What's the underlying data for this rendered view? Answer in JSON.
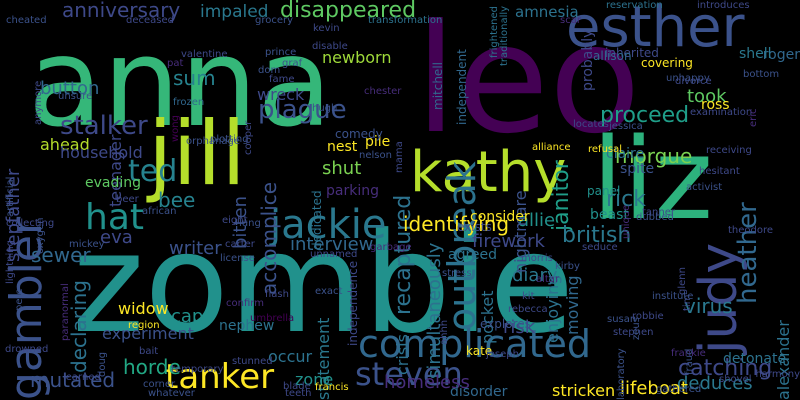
{
  "colors": {
    "background": "#000000",
    "palette": [
      "#440154",
      "#3b528b",
      "#21908d",
      "#5dc963",
      "#fde725"
    ]
  },
  "words": [
    {
      "t": "anna",
      "c": "#35b779"
    },
    {
      "t": "leo",
      "c": "#440154"
    },
    {
      "t": "zombie",
      "c": "#21918c"
    },
    {
      "t": "jill",
      "c": "#b5de2b"
    },
    {
      "t": "liz",
      "c": "#2db27d"
    },
    {
      "t": "esther",
      "c": "#3b528b"
    },
    {
      "t": "kathy",
      "c": "#b5de2b"
    },
    {
      "t": "gambler",
      "c": "#3b528b"
    },
    {
      "t": "tanker",
      "c": "#fde725"
    },
    {
      "t": "complicated",
      "c": "#31688e"
    },
    {
      "t": "judy",
      "c": "#3e4989"
    },
    {
      "t": "jackie",
      "c": "#2a788e"
    },
    {
      "t": "steven",
      "c": "#3b528b"
    },
    {
      "t": "hat",
      "c": "#21918c"
    },
    {
      "t": "ted",
      "c": "#26828e"
    },
    {
      "t": "stalker",
      "c": "#3e4989"
    },
    {
      "t": "outbreak",
      "c": "#2c728e"
    },
    {
      "t": "heather",
      "c": "#31688e"
    },
    {
      "t": "recaptured",
      "c": "#2c728e"
    },
    {
      "t": "janitor",
      "c": "#1f9e89"
    },
    {
      "t": "disappeared",
      "c": "#5ec962"
    },
    {
      "t": "anniversary",
      "c": "#3e4989"
    },
    {
      "t": "impaled",
      "c": "#2a788e"
    },
    {
      "t": "amnesia",
      "c": "#2c728e"
    },
    {
      "t": "mutated",
      "c": "#3b528b"
    },
    {
      "t": "catching",
      "c": "#3e4989"
    },
    {
      "t": "identifying",
      "c": "#fde725"
    },
    {
      "t": "horde",
      "c": "#22a884"
    },
    {
      "t": "rick",
      "c": "#2a788e"
    },
    {
      "t": "british",
      "c": "#2a788e"
    },
    {
      "t": "sewer",
      "c": "#31688e"
    },
    {
      "t": "declaring",
      "c": "#2c728e"
    },
    {
      "t": "stepfather",
      "c": "#3e4989"
    },
    {
      "t": "plague",
      "c": "#3b528b"
    },
    {
      "t": "accomplice",
      "c": "#3b528b"
    },
    {
      "t": "proceed",
      "c": "#1f9e89"
    },
    {
      "t": "morgue",
      "c": "#7ad151"
    },
    {
      "t": "alexander",
      "c": "#2c728e"
    },
    {
      "t": "eva",
      "c": "#3e4989"
    },
    {
      "t": "button",
      "c": "#31688e"
    },
    {
      "t": "sum",
      "c": "#26828e"
    },
    {
      "t": "newborn",
      "c": "#9fda3a"
    },
    {
      "t": "ahead",
      "c": "#b5de2b"
    },
    {
      "t": "household",
      "c": "#3e4989"
    },
    {
      "t": "bee",
      "c": "#26828e"
    },
    {
      "t": "writer",
      "c": "#3b528b"
    },
    {
      "t": "interview",
      "c": "#31688e"
    },
    {
      "t": "diary",
      "c": "#2a788e"
    },
    {
      "t": "deduces",
      "c": "#2a788e"
    },
    {
      "t": "virus",
      "c": "#2a788e"
    },
    {
      "t": "simultaneously",
      "c": "#2c728e"
    },
    {
      "t": "pocket",
      "c": "#2c728e"
    },
    {
      "t": "allie",
      "c": "#21918c"
    },
    {
      "t": "firework",
      "c": "#3e4989"
    },
    {
      "t": "bitten",
      "c": "#3b528b"
    },
    {
      "t": "shut",
      "c": "#7ad151"
    },
    {
      "t": "enjoying",
      "c": "#2c728e"
    },
    {
      "t": "moving",
      "c": "#31688e"
    },
    {
      "t": "risk",
      "c": "#3e4989"
    },
    {
      "t": "crisis",
      "c": "#2c728e"
    },
    {
      "t": "statement",
      "c": "#2a788e"
    },
    {
      "t": "homeless",
      "c": "#472d7b"
    },
    {
      "t": "zone",
      "c": "#21918c"
    },
    {
      "t": "cap",
      "c": "#21918c"
    },
    {
      "t": "widow",
      "c": "#fde725"
    },
    {
      "t": "experiment",
      "c": "#3b528b"
    },
    {
      "t": "teenager",
      "c": "#3e4989"
    },
    {
      "t": "wreck",
      "c": "#3e4989"
    },
    {
      "t": "took",
      "c": "#5ec962"
    },
    {
      "t": "nightmare",
      "c": "#3b528b"
    },
    {
      "t": "probably",
      "c": "#3e4989"
    },
    {
      "t": "roger",
      "c": "#31688e"
    },
    {
      "t": "shell",
      "c": "#2a788e"
    },
    {
      "t": "lifeboat",
      "c": "#fde725"
    },
    {
      "t": "stricken",
      "c": "#fde725"
    },
    {
      "t": "disorder",
      "c": "#31688e"
    },
    {
      "t": "detonate",
      "c": "#2c728e"
    },
    {
      "t": "occur",
      "c": "#2c728e"
    },
    {
      "t": "nephew",
      "c": "#2c728e"
    },
    {
      "t": "parking",
      "c": "#472d7b"
    },
    {
      "t": "evading",
      "c": "#5ec962"
    },
    {
      "t": "dedicated",
      "c": "#2c728e"
    },
    {
      "t": "pile",
      "c": "#fde725"
    },
    {
      "t": "comedy",
      "c": "#3b528b"
    },
    {
      "t": "nest",
      "c": "#fde725"
    },
    {
      "t": "ross",
      "c": "#fde725"
    },
    {
      "t": "spite",
      "c": "#3b528b"
    },
    {
      "t": "beast",
      "c": "#21918c"
    },
    {
      "t": "claire",
      "c": "#2c728e"
    },
    {
      "t": "panel",
      "c": "#21918c"
    },
    {
      "t": "consider",
      "c": "#fde725"
    },
    {
      "t": "agreed",
      "c": "#2c728e"
    },
    {
      "t": "exists",
      "c": "#3e4989"
    },
    {
      "t": "kate",
      "c": "#fde725"
    },
    {
      "t": "explores",
      "c": "#3b528b"
    },
    {
      "t": "independence",
      "c": "#3e4989"
    },
    {
      "t": "independent",
      "c": "#31688e"
    },
    {
      "t": "mitchell",
      "c": "#31688e"
    },
    {
      "t": "inherited",
      "c": "#3e4989"
    },
    {
      "t": "allison",
      "c": "#31688e"
    },
    {
      "t": "covering",
      "c": "#fde725"
    },
    {
      "t": "traditionally",
      "c": "#2c728e"
    },
    {
      "t": "frightened",
      "c": "#2c728e"
    },
    {
      "t": "reservation",
      "c": "#2c728e"
    },
    {
      "t": "introduces",
      "c": "#3e4989"
    },
    {
      "t": "scar",
      "c": "#472d7b"
    },
    {
      "t": "transformation",
      "c": "#2c728e"
    },
    {
      "t": "grocery",
      "c": "#3b528b"
    },
    {
      "t": "deceased",
      "c": "#3e4989"
    },
    {
      "t": "cheated",
      "c": "#3b528b"
    },
    {
      "t": "kevin",
      "c": "#3e4989"
    },
    {
      "t": "disable",
      "c": "#3e4989"
    },
    {
      "t": "prince",
      "c": "#3b528b"
    },
    {
      "t": "graf",
      "c": "#3b528b"
    },
    {
      "t": "dom",
      "c": "#3b528b"
    },
    {
      "t": "fame",
      "c": "#3e4989"
    },
    {
      "t": "chester",
      "c": "#472d7b"
    },
    {
      "t": "hugh",
      "c": "#3b528b"
    },
    {
      "t": "valentine",
      "c": "#3e4989"
    },
    {
      "t": "pat",
      "c": "#472d7b"
    },
    {
      "t": "unsure",
      "c": "#3b528b"
    },
    {
      "t": "frozen",
      "c": "#31688e"
    },
    {
      "t": "wong",
      "c": "#440154"
    },
    {
      "t": "orphanage",
      "c": "#3b528b"
    },
    {
      "t": "plotting",
      "c": "#3b528b"
    },
    {
      "t": "cooper",
      "c": "#3e4989"
    },
    {
      "t": "nelson",
      "c": "#3b528b"
    },
    {
      "t": "mama",
      "c": "#3e4989"
    },
    {
      "t": "eight",
      "c": "#3e4989"
    },
    {
      "t": "lung",
      "c": "#3b528b"
    },
    {
      "t": "carter",
      "c": "#3e4989"
    },
    {
      "t": "license",
      "c": "#3b528b"
    },
    {
      "t": "garbage",
      "c": "#472d7b"
    },
    {
      "t": "unnamed",
      "c": "#3e4989"
    },
    {
      "t": "exact",
      "c": "#3b528b"
    },
    {
      "t": "umbrella",
      "c": "#440154"
    },
    {
      "t": "confirm",
      "c": "#472d7b"
    },
    {
      "t": "flash",
      "c": "#3e4989"
    },
    {
      "t": "region",
      "c": "#fde725"
    },
    {
      "t": "bait",
      "c": "#3e4989"
    },
    {
      "t": "doug",
      "c": "#3b528b"
    },
    {
      "t": "temporary",
      "c": "#3e4989"
    },
    {
      "t": "corner",
      "c": "#3b528b"
    },
    {
      "t": "whatever",
      "c": "#3b528b"
    },
    {
      "t": "learned",
      "c": "#3e4989"
    },
    {
      "t": "stunned",
      "c": "#3e4989"
    },
    {
      "t": "blade",
      "c": "#3e4989"
    },
    {
      "t": "teeth",
      "c": "#3e4989"
    },
    {
      "t": "francis",
      "c": "#fde725"
    },
    {
      "t": "joseph",
      "c": "#3e4989"
    },
    {
      "t": "rebecca",
      "c": "#3e4989"
    },
    {
      "t": "stress",
      "c": "#3b528b"
    },
    {
      "t": "altar",
      "c": "#472d7b"
    },
    {
      "t": "kit",
      "c": "#3e4989"
    },
    {
      "t": "morris",
      "c": "#3e4989"
    },
    {
      "t": "kirby",
      "c": "#3b528b"
    },
    {
      "t": "seduce",
      "c": "#3e4989"
    },
    {
      "t": "tanner",
      "c": "#3e4989"
    },
    {
      "t": "dubbed",
      "c": "#3b528b"
    },
    {
      "t": "theodore",
      "c": "#3e4989"
    },
    {
      "t": "hesitant",
      "c": "#3e4989"
    },
    {
      "t": "activist",
      "c": "#3b528b"
    },
    {
      "t": "unique",
      "c": "#472d7b"
    },
    {
      "t": "glenn",
      "c": "#3e4989"
    },
    {
      "t": "tim",
      "c": "#3e4989"
    },
    {
      "t": "susan",
      "c": "#3b528b"
    },
    {
      "t": "stephen",
      "c": "#3e4989"
    },
    {
      "t": "institute",
      "c": "#3b528b"
    },
    {
      "t": "robbie",
      "c": "#3e4989"
    },
    {
      "t": "frankie",
      "c": "#472d7b"
    },
    {
      "t": "fraud",
      "c": "#3b528b"
    },
    {
      "t": "shovel",
      "c": "#3e4989"
    },
    {
      "t": "harmony",
      "c": "#3e4989"
    },
    {
      "t": "gathered",
      "c": "#3b528b"
    },
    {
      "t": "laboratory",
      "c": "#3b528b"
    },
    {
      "t": "zeus",
      "c": "#3b528b"
    },
    {
      "t": "receiving",
      "c": "#3e4989"
    },
    {
      "t": "alliance",
      "c": "#fde725"
    },
    {
      "t": "refusal",
      "c": "#fde725"
    },
    {
      "t": "locates",
      "c": "#3e4989"
    },
    {
      "t": "jessica",
      "c": "#3b528b"
    },
    {
      "t": "examination",
      "c": "#3e4989"
    },
    {
      "t": "eric",
      "c": "#472d7b"
    },
    {
      "t": "bottom",
      "c": "#3b528b"
    },
    {
      "t": "unhappy",
      "c": "#3b528b"
    },
    {
      "t": "divorce",
      "c": "#3e4989"
    },
    {
      "t": "beer",
      "c": "#3e4989"
    },
    {
      "t": "african",
      "c": "#3b528b"
    },
    {
      "t": "oxygen",
      "c": "#3b528b"
    },
    {
      "t": "collecting",
      "c": "#3e4989"
    },
    {
      "t": "artificial",
      "c": "#3b528b"
    },
    {
      "t": "lightning",
      "c": "#3e4989"
    },
    {
      "t": "paranormal",
      "c": "#472d7b"
    },
    {
      "t": "mickey",
      "c": "#3b528b"
    },
    {
      "t": "pete",
      "c": "#3b528b"
    },
    {
      "t": "drowned",
      "c": "#3e4989"
    },
    {
      "t": "anymore",
      "c": "#3e4989"
    },
    {
      "t": "ahhh",
      "c": "#3e4989"
    }
  ]
}
